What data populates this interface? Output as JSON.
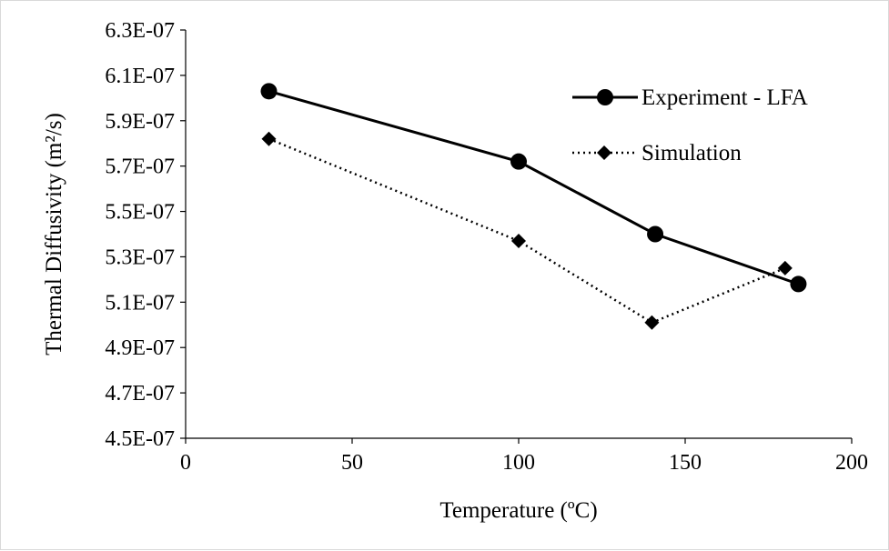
{
  "chart_data": {
    "type": "line",
    "xlabel": "Temperature (ºC)",
    "ylabel": "Thermal Diffusivity (m²/s)",
    "xlim": [
      0,
      200
    ],
    "ylim": [
      4.5e-07,
      6.3e-07
    ],
    "x_ticks": [
      "0",
      "50",
      "100",
      "150",
      "200"
    ],
    "y_ticks": [
      "4.5E-07",
      "4.7E-07",
      "4.9E-07",
      "5.1E-07",
      "5.3E-07",
      "5.5E-07",
      "5.7E-07",
      "5.9E-07",
      "6.1E-07",
      "6.3E-07"
    ],
    "grid": false,
    "legend_position": "top-right",
    "series": [
      {
        "name": "Experiment - LFA",
        "style": "solid",
        "marker": "circle",
        "color": "#000000",
        "x": [
          25,
          100,
          141,
          184
        ],
        "y": [
          6.03e-07,
          5.72e-07,
          5.4e-07,
          5.18e-07
        ]
      },
      {
        "name": "Simulation",
        "style": "dotted",
        "marker": "diamond",
        "color": "#000000",
        "x": [
          25,
          100,
          140,
          180
        ],
        "y": [
          5.82e-07,
          5.37e-07,
          5.01e-07,
          5.25e-07
        ]
      }
    ]
  }
}
